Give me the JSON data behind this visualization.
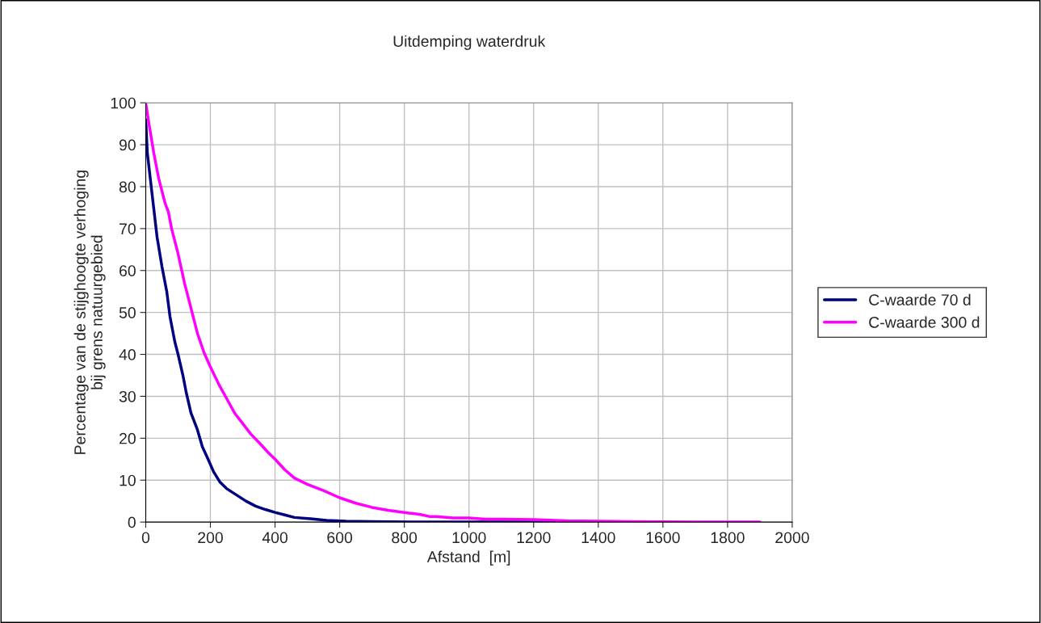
{
  "chart_data": {
    "type": "line",
    "title": "Uitdemping waterdruk",
    "xlabel": "Afstand  [m]",
    "ylabel": "Percentage van de stijghoogte verhoging\nbij grens natuurgebied",
    "xlim": [
      0,
      2000
    ],
    "xticks": [
      0,
      200,
      400,
      600,
      800,
      1000,
      1200,
      1400,
      1600,
      1800,
      2000
    ],
    "ylim": [
      0,
      100
    ],
    "yticks": [
      0,
      10,
      20,
      30,
      40,
      50,
      60,
      70,
      80,
      90,
      100
    ],
    "grid": true,
    "legend": "right",
    "marker": "none",
    "line_style": "solid",
    "series": [
      {
        "name": "C-waarde 70 d",
        "color": "#000080",
        "x": [
          0,
          5,
          20,
          35,
          50,
          65,
          75,
          90,
          100,
          115,
          125,
          140,
          160,
          175,
          190,
          210,
          230,
          250,
          280,
          310,
          340,
          370,
          400,
          430,
          460,
          510,
          560,
          620,
          700,
          900,
          1100,
          1300
        ],
        "values": [
          96,
          88,
          78,
          68,
          61,
          55,
          49,
          43,
          40,
          35,
          31,
          26,
          22,
          18,
          15.5,
          12,
          9.5,
          8,
          6.5,
          5,
          3.8,
          3,
          2.3,
          1.7,
          1.1,
          0.8,
          0.4,
          0.2,
          0.1,
          0,
          0,
          0
        ]
      },
      {
        "name": "C-waarde 300 d",
        "color": "#ff00ff",
        "x": [
          0,
          10,
          25,
          40,
          60,
          70,
          80,
          100,
          120,
          140,
          160,
          180,
          200,
          225,
          250,
          275,
          300,
          325,
          350,
          380,
          400,
          430,
          460,
          500,
          550,
          600,
          650,
          700,
          750,
          800,
          850,
          880,
          900,
          950,
          1000,
          1050,
          1100,
          1200,
          1300,
          1400,
          1500,
          1700,
          1900
        ],
        "values": [
          100,
          95,
          88,
          82,
          76,
          74,
          70,
          64,
          57,
          51,
          45,
          40.5,
          37,
          33,
          29.5,
          26,
          23.5,
          21,
          19,
          16.5,
          15,
          12.5,
          10.5,
          9,
          7.5,
          5.8,
          4.5,
          3.5,
          2.8,
          2.3,
          1.8,
          1.3,
          1.3,
          1,
          1,
          0.7,
          0.7,
          0.6,
          0.3,
          0.2,
          0.1,
          0,
          0
        ]
      }
    ]
  }
}
